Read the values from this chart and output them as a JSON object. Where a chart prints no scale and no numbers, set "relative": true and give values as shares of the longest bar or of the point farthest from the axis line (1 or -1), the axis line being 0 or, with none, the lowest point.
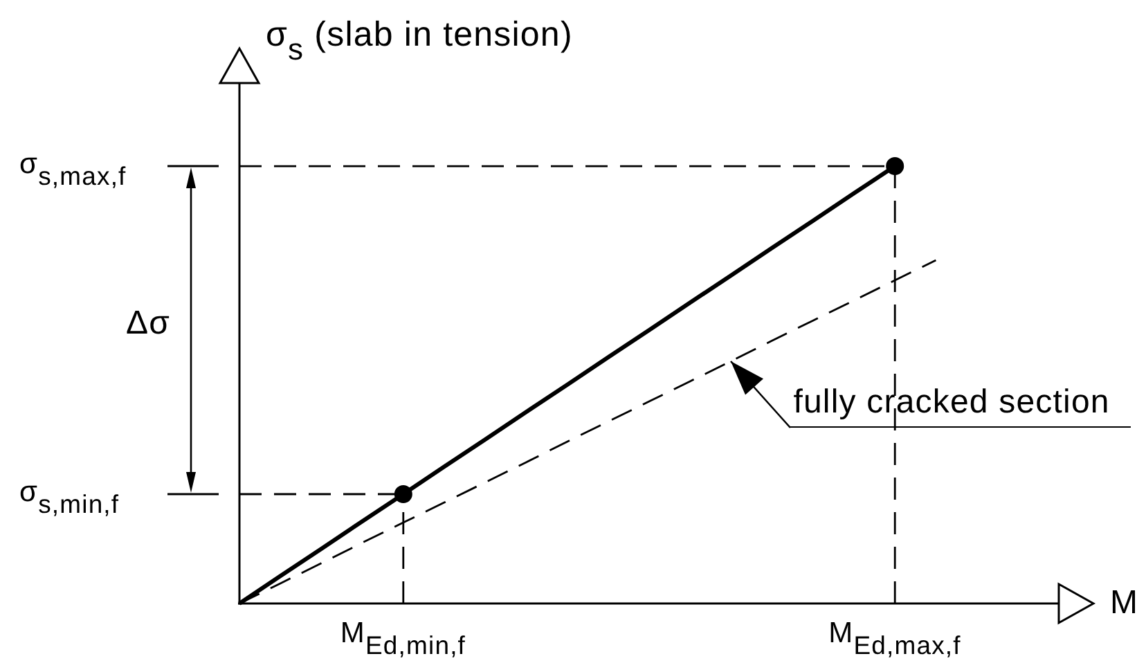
{
  "chart_data": {
    "type": "line",
    "relative": true,
    "xlabel": "M",
    "ylabel": "σ$_{s}$ (slab in tension)",
    "categories": [
      null,
      null,
      null,
      null,
      "M$_{Ed,min,f}$",
      null,
      null,
      null,
      null,
      null,
      null,
      null,
      null,
      null,
      null,
      null,
      "M$_{Ed,max,f}$",
      null,
      null,
      null,
      null
    ],
    "series": [
      {
        "color": "#000000",
        "values": [
          0,
          0.063,
          0.125,
          0.188,
          0.25,
          0.313,
          0.375,
          0.438,
          0.5,
          0.563,
          0.625,
          0.688,
          0.75,
          0.813,
          0.875,
          0.938,
          1,
          null,
          null,
          null,
          null
        ],
        "line_style": "solid",
        "marker": "none"
      },
      {
        "name": "fully cracked section",
        "color": "#000000",
        "values": [
          0,
          0.046,
          0.092,
          0.139,
          0.185,
          0.231,
          0.277,
          0.323,
          0.37,
          0.416,
          0.462,
          0.508,
          0.554,
          0.601,
          0.647,
          0.693,
          0.739,
          0.785,
          null,
          null,
          null
        ],
        "line_style": "dashed",
        "marker": "none"
      },
      {
        "color": "#000000",
        "values": [
          0.25,
          0.25,
          0.25,
          0.25,
          0.25,
          null,
          null,
          null,
          null,
          null,
          null,
          null,
          null,
          null,
          null,
          null,
          null,
          null,
          null,
          null,
          null
        ],
        "line_style": "dashed",
        "marker": "none"
      },
      {
        "color": "#000000",
        "values": [
          1,
          1,
          1,
          1,
          1,
          1,
          1,
          1,
          1,
          1,
          1,
          1,
          1,
          1,
          1,
          1,
          1,
          null,
          null,
          null,
          null
        ],
        "line_style": "dashed",
        "marker": "none"
      },
      {
        "type": "lollipop",
        "color": "#000000",
        "values": [
          null,
          null,
          null,
          null,
          0.25,
          null,
          null,
          null,
          null,
          null,
          null,
          null,
          null,
          null,
          null,
          null,
          1,
          null,
          null,
          null,
          null
        ],
        "line_style": "dashed",
        "marker": "circle"
      }
    ],
    "annotations": [
      "σ$_{s,min,f}$",
      "σ$_{s,max,f}$",
      "Δσ"
    ]
  }
}
